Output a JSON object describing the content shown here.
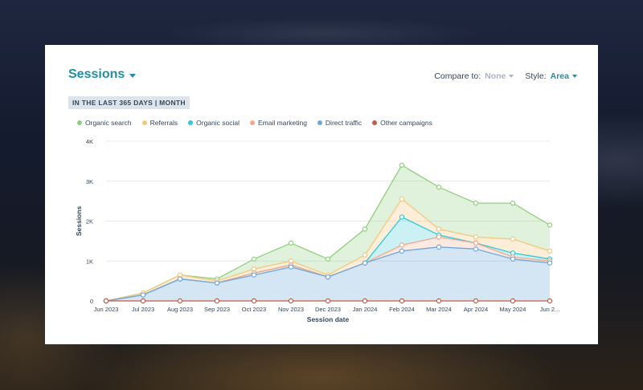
{
  "header": {
    "title": "Sessions",
    "compare_label": "Compare to:",
    "compare_value": "None",
    "style_label": "Style:",
    "style_value": "Area",
    "period": "IN THE LAST 365 DAYS | MONTH"
  },
  "colors": {
    "accent": "#1f8fa6"
  },
  "chart_data": {
    "type": "area",
    "stacked": true,
    "title": "",
    "xlabel": "Session date",
    "ylabel": "Sessions",
    "ylim": [
      0,
      4000
    ],
    "yticks": [
      0,
      1000,
      2000,
      3000,
      4000
    ],
    "ytick_labels": [
      "0",
      "1K",
      "2K",
      "3K",
      "4K"
    ],
    "categories": [
      "Jun 2023",
      "Jul 2023",
      "Aug 2023",
      "Sep 2023",
      "Oct 2023",
      "Nov 2023",
      "Dec 2023",
      "Jan 2024",
      "Feb 2024",
      "Mar 2024",
      "Apr 2024",
      "May 2024",
      "Jun 2..."
    ],
    "grid": true,
    "legend_position": "top-left",
    "series": [
      {
        "name": "Other campaigns",
        "color": "#c65a47",
        "values": [
          0,
          0,
          0,
          0,
          0,
          0,
          0,
          0,
          0,
          0,
          0,
          0,
          0
        ]
      },
      {
        "name": "Direct traffic",
        "color": "#6fa8dc",
        "values": [
          0,
          150,
          550,
          450,
          650,
          850,
          600,
          950,
          1250,
          1350,
          1300,
          1050,
          950
        ]
      },
      {
        "name": "Email marketing",
        "color": "#f4a88a",
        "values": [
          0,
          0,
          0,
          0,
          50,
          50,
          0,
          0,
          150,
          250,
          150,
          50,
          50
        ]
      },
      {
        "name": "Organic social",
        "color": "#2fc8d8",
        "values": [
          0,
          0,
          0,
          0,
          0,
          0,
          0,
          0,
          700,
          50,
          0,
          100,
          50
        ]
      },
      {
        "name": "Referrals",
        "color": "#f5c77e",
        "values": [
          0,
          50,
          100,
          50,
          100,
          100,
          50,
          200,
          450,
          150,
          150,
          350,
          200
        ]
      },
      {
        "name": "Organic search",
        "color": "#8fcf7e",
        "values": [
          0,
          0,
          0,
          50,
          250,
          450,
          400,
          650,
          850,
          1050,
          850,
          900,
          650
        ]
      }
    ],
    "legend_order": [
      "Organic search",
      "Referrals",
      "Organic social",
      "Email marketing",
      "Direct traffic",
      "Other campaigns"
    ]
  }
}
